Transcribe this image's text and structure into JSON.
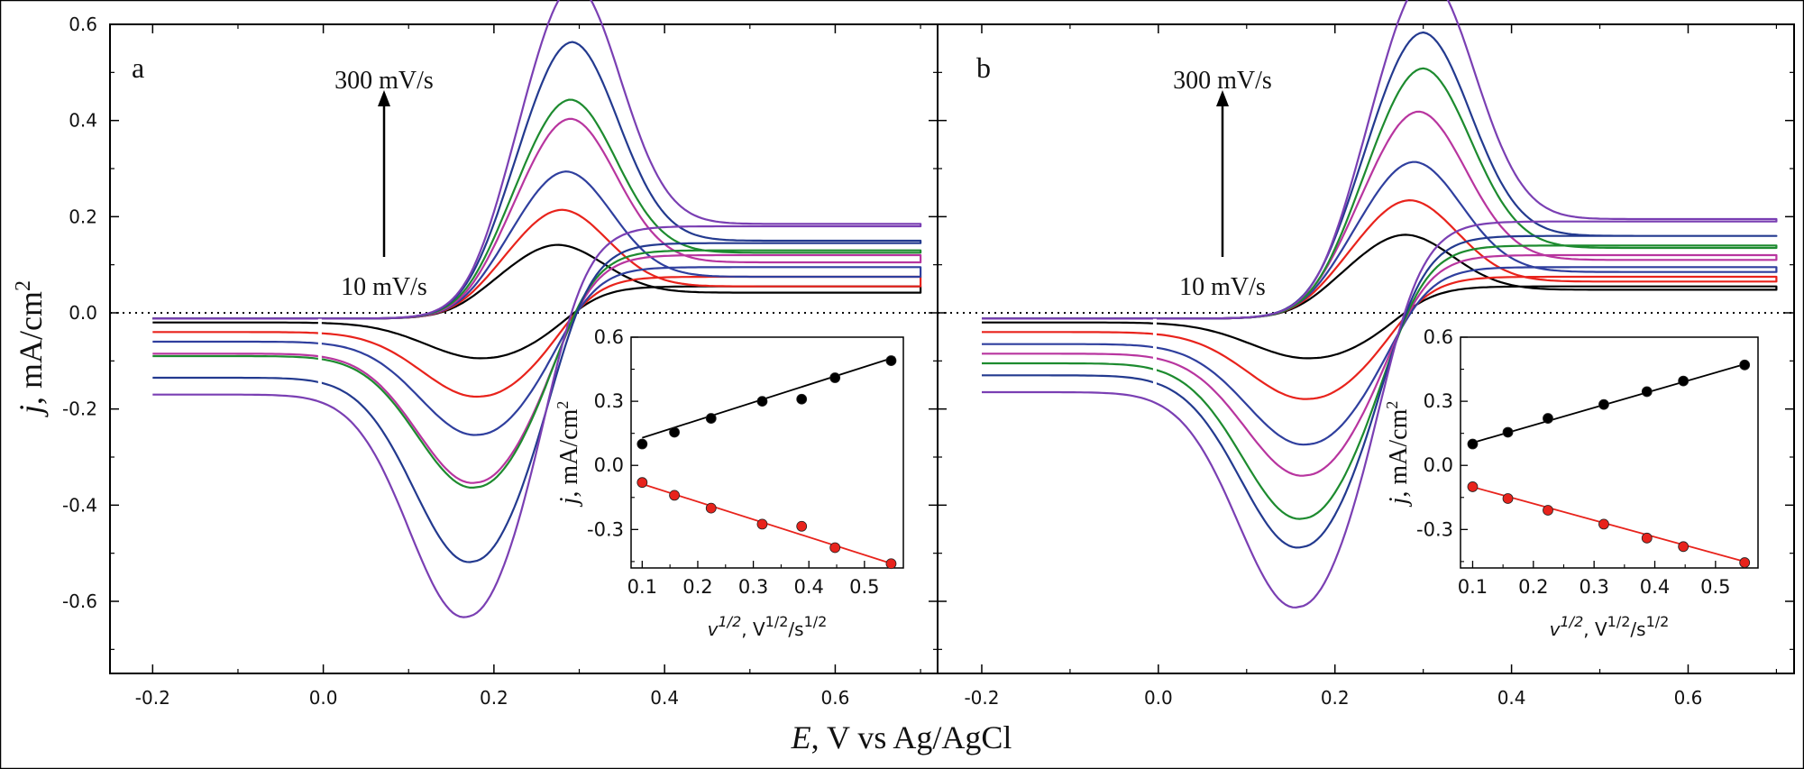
{
  "figure": {
    "xlabel_italic": "E",
    "xlabel_rest": ", V vs Ag/AgCl",
    "ylabel_italic": "j",
    "ylabel_rest": ", mA/cm",
    "ylabel_sup": "2"
  },
  "chart_data": [
    {
      "type": "line",
      "panel_label": "a",
      "xlim": [
        -0.25,
        0.72
      ],
      "ylim": [
        -0.75,
        0.6
      ],
      "xticks": [
        "-0.2",
        "0.0",
        "0.2",
        "0.4",
        "0.6"
      ],
      "xtick_values": [
        -0.2,
        0.0,
        0.2,
        0.4,
        0.6
      ],
      "yticks": [
        "0.6",
        "0.4",
        "0.2",
        "0.0",
        "-0.2",
        "-0.4",
        "-0.6"
      ],
      "ytick_values": [
        0.6,
        0.4,
        0.2,
        0.0,
        -0.2,
        -0.4,
        -0.6
      ],
      "zero_line": true,
      "annotation_top": "300 mV/s",
      "annotation_bottom": "10 mV/s",
      "series": [
        {
          "color": "#000000",
          "ipa": 0.1,
          "ipc": -0.075,
          "epa": 0.275,
          "epc": 0.19,
          "ia_end": 0.042,
          "ic_start": -0.02,
          "ic_end": 0.055
        },
        {
          "color": "#e8231c",
          "ipa": 0.16,
          "ipc": -0.135,
          "epa": 0.28,
          "epc": 0.185,
          "ia_end": 0.055,
          "ic_start": -0.04,
          "ic_end": 0.075
        },
        {
          "color": "#2f3f9e",
          "ipa": 0.22,
          "ipc": -0.195,
          "epa": 0.285,
          "epc": 0.183,
          "ia_end": 0.075,
          "ic_start": -0.06,
          "ic_end": 0.095
        },
        {
          "color": "#b8359f",
          "ipa": 0.3,
          "ipc": -0.27,
          "epa": 0.29,
          "epc": 0.18,
          "ia_end": 0.105,
          "ic_start": -0.085,
          "ic_end": 0.12
        },
        {
          "color": "#1d8b2f",
          "ipa": 0.32,
          "ipc": -0.275,
          "epa": 0.29,
          "epc": 0.18,
          "ia_end": 0.125,
          "ic_start": -0.09,
          "ic_end": 0.13
        },
        {
          "color": "#233a8f",
          "ipa": 0.415,
          "ipc": -0.385,
          "epa": 0.292,
          "epc": 0.176,
          "ia_end": 0.15,
          "ic_start": -0.135,
          "ic_end": 0.145
        },
        {
          "color": "#7a3fb3",
          "ipa": 0.5,
          "ipc": -0.465,
          "epa": 0.295,
          "epc": 0.17,
          "ia_end": 0.185,
          "ic_start": -0.17,
          "ic_end": 0.18
        }
      ],
      "inset": {
        "type": "scatter",
        "xlabel_v": "v",
        "xlabel_sup1": "1/2",
        "xlabel_mid": ", V",
        "xlabel_sup2": "1/2",
        "xlabel_s": "/s",
        "xlabel_sup3": "1/2",
        "ylabel_italic": "j",
        "ylabel_rest": ", mA/cm",
        "ylabel_sup": "2",
        "xlim": [
          0.08,
          0.57
        ],
        "ylim": [
          -0.48,
          0.6
        ],
        "xticks": [
          "0.1",
          "0.2",
          "0.3",
          "0.4",
          "0.5"
        ],
        "xtick_values": [
          0.1,
          0.2,
          0.3,
          0.4,
          0.5
        ],
        "yticks": [
          "0.6",
          "0.3",
          "0.0",
          "-0.3"
        ],
        "ytick_values": [
          0.6,
          0.3,
          0.0,
          -0.3
        ],
        "series": [
          {
            "color": "#000000",
            "x": [
              0.1,
              0.158,
              0.224,
              0.316,
              0.387,
              0.447,
              0.548
            ],
            "y": [
              0.1,
              0.155,
              0.22,
              0.3,
              0.31,
              0.41,
              0.49
            ],
            "fit": [
              0.046,
              0.83
            ]
          },
          {
            "color": "#e8231c",
            "x": [
              0.1,
              0.158,
              0.224,
              0.316,
              0.387,
              0.447,
              0.548
            ],
            "y": [
              -0.08,
              -0.14,
              -0.2,
              -0.275,
              -0.285,
              -0.385,
              -0.46
            ],
            "fit": [
              -0.004,
              -0.83
            ]
          }
        ]
      }
    },
    {
      "type": "line",
      "panel_label": "b",
      "xlim": [
        -0.25,
        0.72
      ],
      "ylim": [
        -0.75,
        0.6
      ],
      "xticks": [
        "-0.2",
        "0.0",
        "0.2",
        "0.4",
        "0.6"
      ],
      "xtick_values": [
        -0.2,
        0.0,
        0.2,
        0.4,
        0.6
      ],
      "yticks": [],
      "ytick_values": [
        0.6,
        0.4,
        0.2,
        0.0,
        -0.2,
        -0.4,
        -0.6
      ],
      "zero_line": true,
      "annotation_top": "300 mV/s",
      "annotation_bottom": "10 mV/s",
      "series": [
        {
          "color": "#000000",
          "ipa": 0.115,
          "ipc": -0.075,
          "epa": 0.28,
          "epc": 0.175,
          "ia_end": 0.048,
          "ic_start": -0.02,
          "ic_end": 0.055
        },
        {
          "color": "#e8231c",
          "ipa": 0.17,
          "ipc": -0.14,
          "epa": 0.285,
          "epc": 0.172,
          "ia_end": 0.065,
          "ic_start": -0.04,
          "ic_end": 0.075
        },
        {
          "color": "#2f3f9e",
          "ipa": 0.23,
          "ipc": -0.21,
          "epa": 0.29,
          "epc": 0.17,
          "ia_end": 0.085,
          "ic_start": -0.065,
          "ic_end": 0.095
        },
        {
          "color": "#b8359f",
          "ipa": 0.31,
          "ipc": -0.255,
          "epa": 0.295,
          "epc": 0.168,
          "ia_end": 0.11,
          "ic_start": -0.085,
          "ic_end": 0.12
        },
        {
          "color": "#1d8b2f",
          "ipa": 0.375,
          "ipc": -0.325,
          "epa": 0.3,
          "epc": 0.165,
          "ia_end": 0.135,
          "ic_start": -0.105,
          "ic_end": 0.14
        },
        {
          "color": "#233a8f",
          "ipa": 0.425,
          "ipc": -0.36,
          "epa": 0.3,
          "epc": 0.163,
          "ia_end": 0.16,
          "ic_start": -0.13,
          "ic_end": 0.16
        },
        {
          "color": "#7a3fb3",
          "ipa": 0.505,
          "ipc": -0.45,
          "epa": 0.305,
          "epc": 0.16,
          "ia_end": 0.195,
          "ic_start": -0.165,
          "ic_end": 0.19
        }
      ],
      "inset": {
        "type": "scatter",
        "xlabel_v": "v",
        "xlabel_sup1": "1/2",
        "xlabel_mid": ", V",
        "xlabel_sup2": "1/2",
        "xlabel_s": "/s",
        "xlabel_sup3": "1/2",
        "ylabel_italic": "j",
        "ylabel_rest": ", mA/cm",
        "ylabel_sup": "2",
        "xlim": [
          0.08,
          0.57
        ],
        "ylim": [
          -0.48,
          0.6
        ],
        "xticks": [
          "0.1",
          "0.2",
          "0.3",
          "0.4",
          "0.5"
        ],
        "xtick_values": [
          0.1,
          0.2,
          0.3,
          0.4,
          0.5
        ],
        "yticks": [
          "0.6",
          "0.3",
          "0.0",
          "-0.3"
        ],
        "ytick_values": [
          0.6,
          0.3,
          0.0,
          -0.3
        ],
        "series": [
          {
            "color": "#000000",
            "x": [
              0.1,
              0.158,
              0.224,
              0.316,
              0.387,
              0.447,
              0.548
            ],
            "y": [
              0.1,
              0.155,
              0.22,
              0.285,
              0.345,
              0.395,
              0.47
            ],
            "fit": [
              0.024,
              0.82
            ]
          },
          {
            "color": "#e8231c",
            "x": [
              0.1,
              0.158,
              0.224,
              0.316,
              0.387,
              0.447,
              0.548
            ],
            "y": [
              -0.1,
              -0.155,
              -0.21,
              -0.275,
              -0.34,
              -0.38,
              -0.455
            ],
            "fit": [
              -0.023,
              -0.78
            ]
          }
        ]
      }
    }
  ]
}
